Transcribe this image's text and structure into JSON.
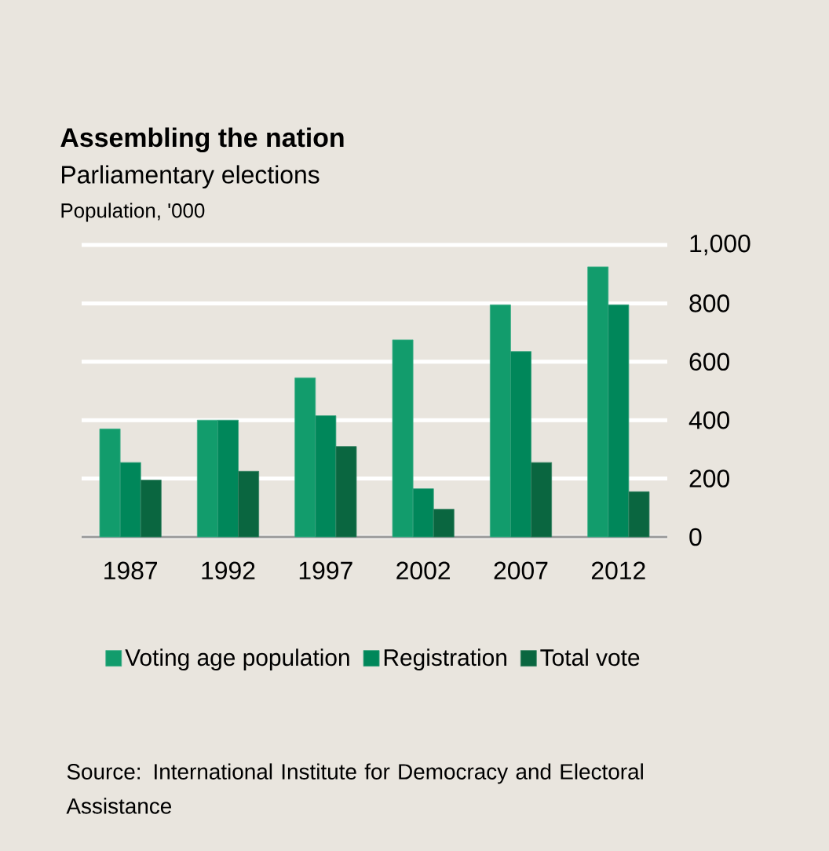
{
  "chart_data": {
    "type": "bar",
    "title": "Assembling the nation",
    "subtitle": "Parliamentary elections",
    "ylabel": "Population, '000",
    "categories": [
      "1987",
      "1992",
      "1997",
      "2002",
      "2007",
      "2012"
    ],
    "series": [
      {
        "name": "Voting age population",
        "color": "#129c6c",
        "values": [
          370,
          400,
          545,
          675,
          795,
          925
        ]
      },
      {
        "name": "Registration",
        "color": "#00875a",
        "values": [
          255,
          400,
          415,
          165,
          635,
          795
        ]
      },
      {
        "name": "Total vote",
        "color": "#0a6640",
        "values": [
          195,
          225,
          310,
          95,
          255,
          155
        ]
      }
    ],
    "ylim": [
      0,
      1000
    ],
    "yticks": [
      0,
      200,
      400,
      600,
      800,
      {
        "value": 1000,
        "label": "1,000"
      }
    ],
    "grid": "y",
    "legend": "bottom",
    "annotations": [
      "Source: International Institute for Democracy and Electoral Assistance"
    ]
  }
}
